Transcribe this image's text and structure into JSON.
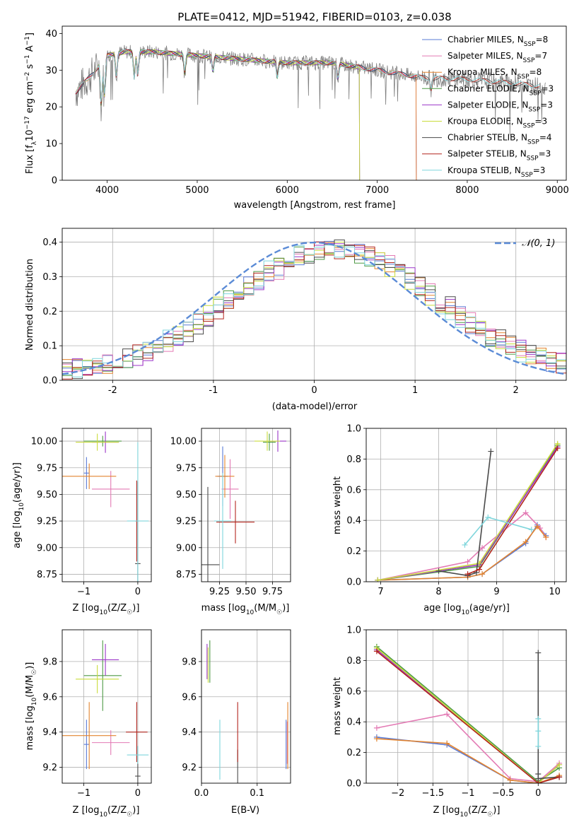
{
  "colors": {
    "Chabrier MILES": "#5a7bd6",
    "Salpeter MILES": "#e37ab4",
    "Kroupa MILES": "#e3842f",
    "Chabrier ELODIE": "#4f9a45",
    "Salpeter ELODIE": "#9b36c8",
    "Kroupa ELODIE": "#c9dc3b",
    "Chabrier STELIB": "#4a4a4a",
    "Salpeter STELIB": "#b3261e",
    "Kroupa STELIB": "#7fd6dc",
    "data": "#808080",
    "normal_curve": "#5b8bd6"
  },
  "chart_data": [
    {
      "type": "line",
      "title": "PLATE=0412, MJD=51942, FIBERID=0103, z=0.038",
      "xlabel": "wavelength [Angstrom, rest frame]",
      "ylabel": "Flux [f_λ10⁻¹⁷ erg cm⁻² s⁻¹ A⁻¹]",
      "xlim": [
        3500,
        9100
      ],
      "ylim": [
        0,
        42
      ],
      "xticks": [
        4000,
        5000,
        6000,
        7000,
        8000,
        9000
      ],
      "yticks": [
        0,
        10,
        20,
        30,
        40
      ],
      "legend_position": "top-right",
      "legend": [
        {
          "name": "Chabrier MILES",
          "nssp": "8"
        },
        {
          "name": "Salpeter MILES",
          "nssp": "7"
        },
        {
          "name": "Kroupa MILES",
          "nssp": "8"
        },
        {
          "name": "Chabrier ELODIE",
          "nssp": "3"
        },
        {
          "name": "Salpeter ELODIE",
          "nssp": "3"
        },
        {
          "name": "Kroupa ELODIE",
          "nssp": "3"
        },
        {
          "name": "Chabrier STELIB",
          "nssp": "4"
        },
        {
          "name": "Salpeter STELIB",
          "nssp": "3"
        },
        {
          "name": "Kroupa STELIB",
          "nssp": "3"
        }
      ],
      "model_ranges": {
        "MILES": [
          3650,
          7430
        ],
        "ELODIE": [
          3900,
          6800
        ],
        "STELIB": [
          3650,
          8800
        ]
      },
      "continuum": [
        [
          3650,
          24
        ],
        [
          3800,
          28
        ],
        [
          4000,
          34
        ],
        [
          4200,
          35
        ],
        [
          4500,
          35
        ],
        [
          5000,
          34
        ],
        [
          5500,
          33
        ],
        [
          6000,
          32
        ],
        [
          6500,
          32
        ],
        [
          7000,
          30
        ],
        [
          7500,
          28
        ],
        [
          8000,
          27.5
        ],
        [
          8500,
          26.5
        ],
        [
          8870,
          25.5
        ]
      ],
      "absorption_lines": [
        [
          3934,
          12
        ],
        [
          3969,
          10
        ],
        [
          4102,
          6
        ],
        [
          4300,
          7
        ],
        [
          4340,
          6
        ],
        [
          4861,
          5
        ],
        [
          5175,
          4
        ],
        [
          5890,
          4
        ],
        [
          6563,
          4
        ],
        [
          7600,
          3
        ]
      ]
    },
    {
      "type": "line",
      "xlabel": "(data-model)/error",
      "ylabel": "Normed distribution",
      "xlim": [
        -2.5,
        2.5
      ],
      "ylim": [
        0,
        0.44
      ],
      "xticks": [
        -2,
        -1,
        0,
        1,
        2
      ],
      "yticks": [
        0.0,
        0.1,
        0.2,
        0.3,
        0.4
      ],
      "legend_position": "top-right",
      "normal_label": "𝒩(0, 1)",
      "bin_width": 0.1,
      "series": [
        {
          "name": "Chabrier MILES",
          "offset": 0.0
        },
        {
          "name": "Salpeter MILES",
          "offset": 0.15
        },
        {
          "name": "Kroupa MILES",
          "offset": 0.05
        },
        {
          "name": "Chabrier ELODIE",
          "offset": -0.05
        },
        {
          "name": "Salpeter ELODIE",
          "offset": 0.08
        },
        {
          "name": "Kroupa ELODIE",
          "offset": -0.08
        },
        {
          "name": "Chabrier STELIB",
          "offset": 0.1
        },
        {
          "name": "Salpeter STELIB",
          "offset": 0.03
        },
        {
          "name": "Kroupa STELIB",
          "offset": -0.1
        }
      ]
    },
    {
      "type": "scatter",
      "xlabel": "Z [log₁₀(Z/Z☉)]",
      "ylabel": "age  [log₁₀(age/yr)]",
      "xlim": [
        -1.4,
        0.25
      ],
      "ylim": [
        8.68,
        10.12
      ],
      "xticks": [
        -1,
        0
      ],
      "yticks": [
        8.75,
        9.0,
        9.25,
        9.5,
        9.75,
        10.0
      ],
      "points": [
        {
          "name": "Chabrier MILES",
          "x": -0.95,
          "y": 9.7,
          "xerr": 0.05,
          "yerr": 0.15
        },
        {
          "name": "Salpeter MILES",
          "x": -0.5,
          "y": 9.55,
          "xerr": 0.35,
          "yerr": 0.17
        },
        {
          "name": "Kroupa MILES",
          "x": -0.9,
          "y": 9.67,
          "xerr": 0.5,
          "yerr": 0.12
        },
        {
          "name": "Chabrier ELODIE",
          "x": -0.65,
          "y": 10.0,
          "xerr": 0.35,
          "yerr": 0.05
        },
        {
          "name": "Salpeter ELODIE",
          "x": -0.6,
          "y": 9.99,
          "xerr": 0.25,
          "yerr": 0.1
        },
        {
          "name": "Kroupa ELODIE",
          "x": -0.75,
          "y": 9.99,
          "xerr": 0.4,
          "yerr": 0.08
        },
        {
          "name": "Chabrier STELIB",
          "x": 0.0,
          "y": 8.85,
          "xerr": 0.05,
          "yerr": 0.77
        },
        {
          "name": "Salpeter STELIB",
          "x": -0.02,
          "y": 9.25,
          "xerr": 0.03,
          "yerr": 0.38
        },
        {
          "name": "Kroupa STELIB",
          "x": 0.0,
          "y": 9.25,
          "xerr": 0.2,
          "yerr": 0.74
        }
      ]
    },
    {
      "type": "scatter",
      "xlabel": "mass [log₁₀(M/M☉)]",
      "ylabel": "",
      "xlim": [
        9.08,
        9.92
      ],
      "ylim": [
        8.68,
        10.12
      ],
      "xticks": [
        9.25,
        9.5,
        9.75
      ],
      "yticks": [
        8.75,
        9.0,
        9.25,
        9.5,
        9.75,
        10.0
      ],
      "points": [
        {
          "name": "Chabrier MILES",
          "x": 9.28,
          "y": 9.67,
          "xerr": 0.05,
          "yerr": 0.28
        },
        {
          "name": "Salpeter MILES",
          "x": 9.35,
          "y": 9.55,
          "xerr": 0.08,
          "yerr": 0.28
        },
        {
          "name": "Kroupa MILES",
          "x": 9.3,
          "y": 9.67,
          "xerr": 0.09,
          "yerr": 0.2
        },
        {
          "name": "Chabrier ELODIE",
          "x": 9.72,
          "y": 9.99,
          "xerr": 0.06,
          "yerr": 0.08
        },
        {
          "name": "Salpeter ELODIE",
          "x": 9.8,
          "y": 10.0,
          "xerr": 0.08,
          "yerr": 0.1
        },
        {
          "name": "Kroupa ELODIE",
          "x": 9.7,
          "y": 10.0,
          "xerr": 0.12,
          "yerr": 0.09
        },
        {
          "name": "Chabrier STELIB",
          "x": 9.14,
          "y": 8.84,
          "xerr": 0.11,
          "yerr": 0.73
        },
        {
          "name": "Salpeter STELIB",
          "x": 9.4,
          "y": 9.24,
          "xerr": 0.18,
          "yerr": 0.2
        },
        {
          "name": "Kroupa STELIB",
          "x": 9.28,
          "y": 9.25,
          "xerr": 0.08,
          "yerr": 0.45
        }
      ]
    },
    {
      "type": "line",
      "xlabel": "age  [log₁₀(age/yr)]",
      "ylabel": "mass weight",
      "xlim": [
        6.75,
        10.2
      ],
      "ylim": [
        0,
        1.0
      ],
      "xticks": [
        7,
        8,
        9,
        10
      ],
      "yticks": [
        0.0,
        0.2,
        0.4,
        0.6,
        0.8,
        1.0
      ],
      "series": [
        {
          "name": "Chabrier MILES",
          "x": [
            6.95,
            8.5,
            8.75,
            9.5,
            9.7,
            9.85
          ],
          "y": [
            0.01,
            0.03,
            0.05,
            0.25,
            0.37,
            0.3
          ]
        },
        {
          "name": "Salpeter MILES",
          "x": [
            6.95,
            8.5,
            8.75,
            9.5,
            9.75,
            9.85
          ],
          "y": [
            0.01,
            0.13,
            0.22,
            0.45,
            0.35,
            0.29
          ]
        },
        {
          "name": "Kroupa MILES",
          "x": [
            6.95,
            8.5,
            8.75,
            9.5,
            9.7,
            9.85
          ],
          "y": [
            0.01,
            0.03,
            0.05,
            0.26,
            0.36,
            0.29
          ]
        },
        {
          "name": "Chabrier ELODIE",
          "x": [
            6.95,
            8.7,
            10.05
          ],
          "y": [
            0.01,
            0.1,
            0.89
          ]
        },
        {
          "name": "Salpeter ELODIE",
          "x": [
            6.95,
            8.7,
            10.05
          ],
          "y": [
            0.01,
            0.11,
            0.88
          ]
        },
        {
          "name": "Kroupa ELODIE",
          "x": [
            6.95,
            8.7,
            10.05
          ],
          "y": [
            0.01,
            0.12,
            0.9
          ]
        },
        {
          "name": "Chabrier STELIB",
          "x": [
            8.0,
            8.5,
            8.65,
            8.9
          ],
          "y": [
            0.07,
            0.04,
            0.06,
            0.85
          ]
        },
        {
          "name": "Salpeter STELIB",
          "x": [
            8.5,
            8.7,
            10.05
          ],
          "y": [
            0.05,
            0.08,
            0.87
          ]
        },
        {
          "name": "Kroupa STELIB",
          "x": [
            8.45,
            8.85,
            9.6
          ],
          "y": [
            0.24,
            0.42,
            0.34
          ]
        }
      ]
    },
    {
      "type": "scatter",
      "xlabel": "Z [log₁₀(Z/Z☉)]",
      "ylabel": "mass [log₁₀(M/M☉)]",
      "xlim": [
        -1.4,
        0.25
      ],
      "ylim": [
        9.11,
        9.98
      ],
      "xticks": [
        -1,
        0
      ],
      "yticks": [
        9.2,
        9.4,
        9.6,
        9.8
      ],
      "points": [
        {
          "name": "Chabrier MILES",
          "x": -0.95,
          "y": 9.33,
          "xerr": 0.05,
          "yerr": 0.14
        },
        {
          "name": "Salpeter MILES",
          "x": -0.5,
          "y": 9.34,
          "xerr": 0.35,
          "yerr": 0.07
        },
        {
          "name": "Kroupa MILES",
          "x": -0.9,
          "y": 9.38,
          "xerr": 0.5,
          "yerr": 0.19
        },
        {
          "name": "Chabrier ELODIE",
          "x": -0.65,
          "y": 9.72,
          "xerr": 0.35,
          "yerr": 0.2
        },
        {
          "name": "Salpeter ELODIE",
          "x": -0.6,
          "y": 9.81,
          "xerr": 0.25,
          "yerr": 0.09
        },
        {
          "name": "Kroupa ELODIE",
          "x": -0.75,
          "y": 9.7,
          "xerr": 0.4,
          "yerr": 0.08
        },
        {
          "name": "Chabrier STELIB",
          "x": 0.0,
          "y": 9.15,
          "xerr": 0.05,
          "yerr": 0.17
        },
        {
          "name": "Salpeter STELIB",
          "x": -0.02,
          "y": 9.4,
          "xerr": 0.2,
          "yerr": 0.17
        },
        {
          "name": "Kroupa STELIB",
          "x": 0.0,
          "y": 9.27,
          "xerr": 0.2,
          "yerr": 0.05
        }
      ]
    },
    {
      "type": "scatter",
      "xlabel": "E(B-V)",
      "ylabel": "",
      "xlim": [
        0,
        0.16
      ],
      "ylim": [
        9.11,
        9.98
      ],
      "xticks": [
        0.0,
        0.1
      ],
      "yticks": [
        9.2,
        9.4,
        9.6,
        9.8
      ],
      "points": [
        {
          "name": "Chabrier MILES",
          "x": 0.152,
          "y": 9.33,
          "xerr": 0.0,
          "yerr": 0.14
        },
        {
          "name": "Salpeter MILES",
          "x": 0.154,
          "y": 9.34,
          "xerr": 0.0,
          "yerr": 0.12
        },
        {
          "name": "Kroupa MILES",
          "x": 0.155,
          "y": 9.38,
          "xerr": 0.0,
          "yerr": 0.19
        },
        {
          "name": "Chabrier ELODIE",
          "x": 0.015,
          "y": 9.8,
          "xerr": 0.0,
          "yerr": 0.12
        },
        {
          "name": "Salpeter ELODIE",
          "x": 0.01,
          "y": 9.8,
          "xerr": 0.0,
          "yerr": 0.1
        },
        {
          "name": "Kroupa ELODIE",
          "x": 0.012,
          "y": 9.78,
          "xerr": 0.0,
          "yerr": 0.1
        },
        {
          "name": "Chabrier STELIB",
          "x": 0.065,
          "y": 9.2,
          "xerr": 0.0,
          "yerr": 0.1
        },
        {
          "name": "Salpeter STELIB",
          "x": 0.065,
          "y": 9.4,
          "xerr": 0.0,
          "yerr": 0.17
        },
        {
          "name": "Kroupa STELIB",
          "x": 0.033,
          "y": 9.3,
          "xerr": 0.0,
          "yerr": 0.17
        }
      ]
    },
    {
      "type": "line",
      "xlabel": "Z [log₁₀(Z/Z☉)]",
      "ylabel": "mass weight",
      "xlim": [
        -2.45,
        0.4
      ],
      "ylim": [
        0,
        1.0
      ],
      "xticks": [
        -2.0,
        -1.5,
        -1.0,
        -0.5,
        0.0
      ],
      "yticks": [
        0.0,
        0.2,
        0.4,
        0.6,
        0.8,
        1.0
      ],
      "series": [
        {
          "name": "Chabrier MILES",
          "x": [
            -2.3,
            -1.3,
            -0.4,
            0.0,
            0.3
          ],
          "y": [
            0.3,
            0.25,
            0.02,
            0.0,
            0.04
          ]
        },
        {
          "name": "Salpeter MILES",
          "x": [
            -2.3,
            -1.3,
            -0.4,
            0.0,
            0.3
          ],
          "y": [
            0.36,
            0.45,
            0.03,
            0.01,
            0.13
          ]
        },
        {
          "name": "Kroupa MILES",
          "x": [
            -2.3,
            -1.3,
            -0.4,
            0.0,
            0.3
          ],
          "y": [
            0.29,
            0.26,
            0.02,
            0.0,
            0.05
          ]
        },
        {
          "name": "Chabrier ELODIE",
          "x": [
            -2.3,
            0.0,
            0.3
          ],
          "y": [
            0.89,
            0.01,
            0.1
          ]
        },
        {
          "name": "Salpeter ELODIE",
          "x": [
            -2.3,
            0.0,
            0.3
          ],
          "y": [
            0.87,
            0.0,
            0.12
          ]
        },
        {
          "name": "Kroupa ELODIE",
          "x": [
            -2.3,
            0.0,
            0.3
          ],
          "y": [
            0.88,
            0.0,
            0.12
          ]
        },
        {
          "name": "Chabrier STELIB",
          "x": [
            0.0,
            0.0,
            0.0,
            0.3
          ],
          "y": [
            0.85,
            0.06,
            0.03,
            0.04
          ]
        },
        {
          "name": "Salpeter STELIB",
          "x": [
            -2.3,
            0.0,
            0.3
          ],
          "y": [
            0.86,
            0.0,
            0.04
          ]
        },
        {
          "name": "Kroupa STELIB",
          "x": [
            0.0,
            0.0,
            0.0
          ],
          "y": [
            0.42,
            0.34,
            0.24
          ]
        }
      ]
    }
  ]
}
